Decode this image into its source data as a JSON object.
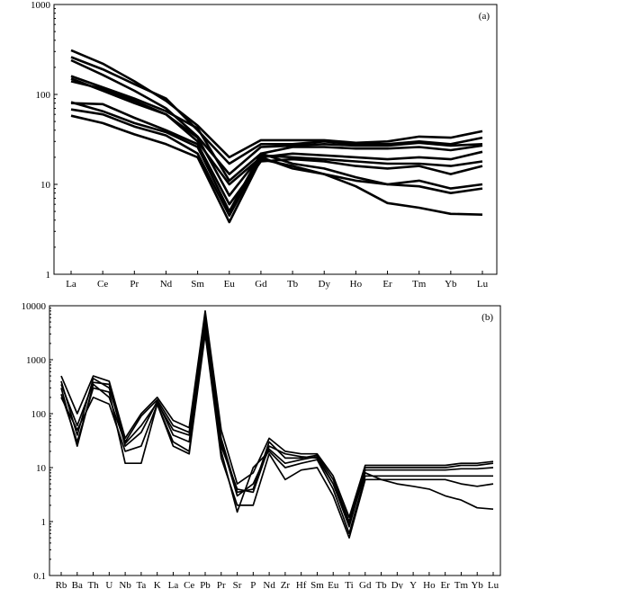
{
  "chart_data": [
    {
      "type": "line",
      "panel_label": "(a)",
      "yscale": "log",
      "ylim": [
        1,
        1000
      ],
      "y_ticks": [
        "1",
        "10",
        "100",
        "1000"
      ],
      "categories": [
        "La",
        "Ce",
        "Pr",
        "Nd",
        "Sm",
        "Eu",
        "Gd",
        "Tb",
        "Dy",
        "Ho",
        "Er",
        "Tm",
        "Yb",
        "Lu"
      ],
      "series": [
        {
          "values": [
            310,
            220,
            140,
            85,
            45,
            20,
            31,
            31,
            31,
            29,
            30,
            34,
            33,
            39
          ]
        },
        {
          "values": [
            260,
            190,
            130,
            90,
            40,
            17,
            28,
            28,
            30,
            28,
            28,
            30,
            28,
            33
          ]
        },
        {
          "values": [
            240,
            165,
            110,
            70,
            34,
            13,
            26,
            27,
            28,
            27,
            27,
            29,
            27,
            28
          ]
        },
        {
          "values": [
            160,
            120,
            90,
            65,
            42,
            11,
            22,
            26,
            26,
            25,
            25,
            26,
            24,
            27
          ]
        },
        {
          "values": [
            150,
            110,
            80,
            60,
            30,
            10,
            20,
            22,
            21,
            20,
            19,
            20,
            19,
            23
          ]
        },
        {
          "values": [
            140,
            115,
            85,
            60,
            33,
            7.5,
            21,
            20,
            19,
            18,
            17,
            17,
            16,
            18
          ]
        },
        {
          "values": [
            80,
            78,
            55,
            40,
            28,
            6,
            18,
            19,
            18,
            16,
            15,
            16,
            13,
            16
          ]
        },
        {
          "values": [
            82,
            65,
            48,
            38,
            26,
            5,
            22,
            17,
            15,
            12,
            10,
            11,
            9,
            10
          ]
        },
        {
          "values": [
            68,
            60,
            44,
            35,
            22,
            4.5,
            20,
            15,
            13,
            11,
            10,
            9.5,
            8,
            9
          ]
        },
        {
          "values": [
            58,
            48,
            36,
            28,
            20,
            3.8,
            19,
            16,
            13,
            9.5,
            6.2,
            5.5,
            4.7,
            4.6
          ]
        }
      ]
    },
    {
      "type": "line",
      "panel_label": "(b)",
      "yscale": "log",
      "ylim": [
        0.1,
        10000
      ],
      "y_ticks": [
        "0.1",
        "1",
        "10",
        "100",
        "1000",
        "10000"
      ],
      "categories": [
        "Rb",
        "Ba",
        "Th",
        "U",
        "Nb",
        "Ta",
        "K",
        "La",
        "Ce",
        "Pb",
        "Pr",
        "Sr",
        "P",
        "Nd",
        "Zr",
        "Hf",
        "Sm",
        "Eu",
        "Ti",
        "Gd",
        "Tb",
        "Dy",
        "Y",
        "Ho",
        "Er",
        "Tm",
        "Yb",
        "Lu"
      ],
      "series": [
        {
          "values": [
            500,
            100,
            500,
            400,
            35,
            100,
            200,
            75,
            55,
            8000,
            50,
            5,
            8,
            35,
            20,
            18,
            18,
            7,
            1.2,
            11,
            11,
            11,
            11,
            11,
            11,
            12,
            12,
            13
          ]
        },
        {
          "values": [
            400,
            40,
            450,
            300,
            30,
            90,
            180,
            60,
            45,
            6000,
            35,
            3.5,
            4,
            30,
            15,
            15,
            17,
            6,
            1.0,
            10,
            10,
            10,
            10,
            10,
            10,
            11,
            11,
            12
          ]
        },
        {
          "values": [
            300,
            25,
            350,
            200,
            28,
            60,
            160,
            50,
            40,
            5000,
            25,
            4,
            3.5,
            25,
            18,
            16,
            15,
            5,
            0.8,
            9,
            9,
            9,
            9,
            9,
            9,
            9.5,
            9.5,
            10
          ]
        },
        {
          "values": [
            230,
            30,
            300,
            250,
            12,
            12,
            150,
            30,
            20,
            4000,
            20,
            1.5,
            10,
            20,
            10,
            12,
            14,
            4,
            0.6,
            7,
            7,
            7,
            7,
            7,
            7,
            7,
            7,
            7
          ]
        },
        {
          "values": [
            200,
            50,
            200,
            150,
            20,
            25,
            150,
            25,
            18,
            3000,
            15,
            2,
            2,
            18,
            6,
            9,
            10,
            3,
            0.5,
            6,
            6,
            6,
            6,
            6,
            6,
            5,
            4.5,
            5
          ]
        },
        {
          "values": [
            350,
            60,
            380,
            350,
            25,
            45,
            170,
            40,
            30,
            5000,
            30,
            3,
            5,
            22,
            12,
            14,
            16,
            5,
            0.9,
            8,
            6,
            5,
            4.5,
            4,
            3,
            2.5,
            1.8,
            1.7
          ]
        }
      ]
    }
  ]
}
